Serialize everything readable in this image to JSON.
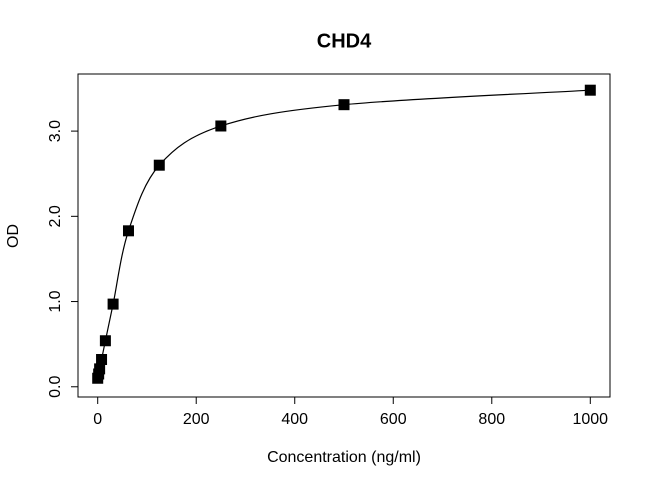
{
  "chart_data": {
    "type": "scatter",
    "title": "CHD4",
    "x_label": "Concentration (ng/ml)",
    "y_label": "OD",
    "x": [
      0,
      1.95,
      3.9,
      7.8,
      15.6,
      31.25,
      62.5,
      125,
      250,
      500,
      1000
    ],
    "series": [
      {
        "color": "#000000",
        "values": [
          0.1,
          0.15,
          0.21,
          0.32,
          0.54,
          0.97,
          1.83,
          2.6,
          3.06,
          3.31,
          3.48
        ]
      }
    ],
    "smooth_line": true,
    "xlim": [
      -40,
      1040
    ],
    "ylim": [
      -0.12,
      3.67
    ],
    "xticks": [
      0,
      200,
      400,
      600,
      800,
      1000
    ],
    "yticks": [
      {
        "value": 0,
        "label": "0.0"
      },
      {
        "value": 1,
        "label": "1.0"
      },
      {
        "value": 2,
        "label": "2.0"
      },
      {
        "value": 3,
        "label": "3.0"
      }
    ]
  }
}
